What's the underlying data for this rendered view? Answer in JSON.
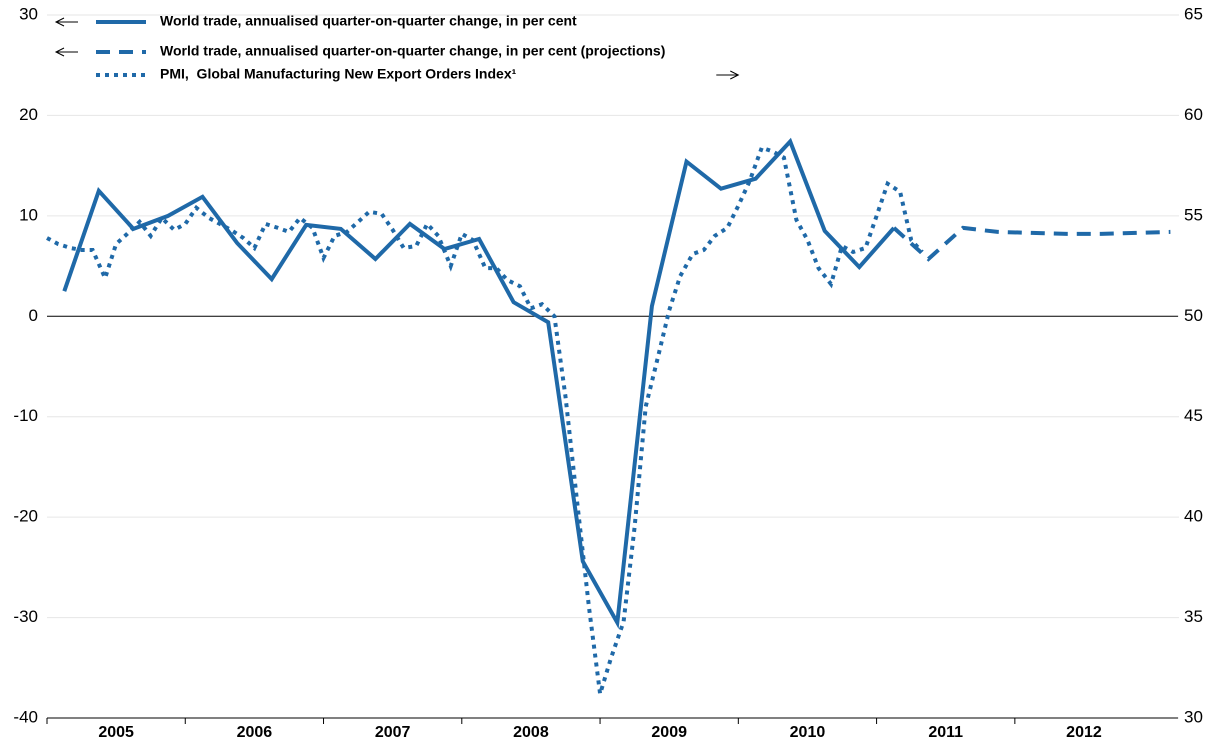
{
  "chart_data": {
    "type": "line",
    "series": [
      {
        "name": "World trade, annualised quarter-on-quarter change, in per cent",
        "color": "#1f69a8",
        "style": "solid",
        "axis": "y",
        "x": [
          2005.125,
          2005.375,
          2005.625,
          2005.875,
          2006.125,
          2006.375,
          2006.625,
          2006.875,
          2007.125,
          2007.375,
          2007.625,
          2007.875,
          2008.125,
          2008.375,
          2008.625,
          2008.875,
          2009.125,
          2009.375,
          2009.625,
          2009.875,
          2010.125,
          2010.375,
          2010.625,
          2010.875,
          2011.125,
          2011.375,
          2011.625,
          2011.875,
          2012.125,
          2012.375,
          2012.625,
          2012.875,
          2013.125
        ],
        "values": [
          2.5,
          12.5,
          8.7,
          10.0,
          11.9,
          7.3,
          3.7,
          9.1,
          8.7,
          5.7,
          9.2,
          6.7,
          7.7,
          1.4,
          -0.6,
          -24.4,
          -30.5,
          1.0,
          15.4,
          12.7,
          13.7,
          17.4,
          8.5,
          4.9,
          8.8,
          null,
          null,
          null,
          null,
          null,
          null,
          null,
          null
        ]
      },
      {
        "name": "World trade, annualised quarter-on-quarter change, in per cent (projections)",
        "color": "#1f69a8",
        "style": "dashed",
        "axis": "y",
        "x": [
          2005.125,
          2005.375,
          2005.625,
          2005.875,
          2006.125,
          2006.375,
          2006.625,
          2006.875,
          2007.125,
          2007.375,
          2007.625,
          2007.875,
          2008.125,
          2008.375,
          2008.625,
          2008.875,
          2009.125,
          2009.375,
          2009.625,
          2009.875,
          2010.125,
          2010.375,
          2010.625,
          2010.875,
          2011.125,
          2011.375,
          2011.625,
          2011.875,
          2012.125,
          2012.375,
          2012.625,
          2012.875,
          2013.125
        ],
        "values": [
          null,
          null,
          null,
          null,
          null,
          null,
          null,
          null,
          null,
          null,
          null,
          null,
          null,
          null,
          null,
          null,
          null,
          null,
          null,
          null,
          null,
          null,
          null,
          null,
          8.8,
          5.7,
          8.8,
          8.4,
          8.3,
          8.2,
          8.2,
          8.3,
          8.4
        ]
      },
      {
        "name": "PMI,  Global Manufacturing New Export Orders Index¹",
        "color": "#1f69a8",
        "style": "dotted",
        "axis": "y2",
        "x": [
          2005.0,
          2005.08,
          2005.17,
          2005.25,
          2005.33,
          2005.42,
          2005.5,
          2005.58,
          2005.67,
          2005.75,
          2005.83,
          2005.92,
          2006.0,
          2006.08,
          2006.17,
          2006.25,
          2006.33,
          2006.42,
          2006.5,
          2006.58,
          2006.67,
          2006.75,
          2006.83,
          2006.92,
          2007.0,
          2007.08,
          2007.17,
          2007.25,
          2007.33,
          2007.42,
          2007.5,
          2007.58,
          2007.67,
          2007.75,
          2007.83,
          2007.92,
          2008.0,
          2008.08,
          2008.17,
          2008.25,
          2008.33,
          2008.42,
          2008.5,
          2008.58,
          2008.67,
          2008.75,
          2008.83,
          2008.92,
          2009.0,
          2009.08,
          2009.17,
          2009.25,
          2009.33,
          2009.42,
          2009.5,
          2009.58,
          2009.67,
          2009.75,
          2009.83,
          2009.92,
          2010.0,
          2010.08,
          2010.17,
          2010.25,
          2010.33,
          2010.42,
          2010.5,
          2010.58,
          2010.67,
          2010.75,
          2010.83,
          2010.92,
          2011.0,
          2011.08,
          2011.17,
          2011.25,
          2011.33
        ],
        "values": [
          53.9,
          53.6,
          53.4,
          53.3,
          53.3,
          51.9,
          53.6,
          54.1,
          54.7,
          54.0,
          54.9,
          54.3,
          54.6,
          55.4,
          54.9,
          54.6,
          54.3,
          53.9,
          53.4,
          54.6,
          54.4,
          54.2,
          54.9,
          54.4,
          52.9,
          54.0,
          54.2,
          54.7,
          55.2,
          55.1,
          54.3,
          53.4,
          53.5,
          54.6,
          54.0,
          52.5,
          54.1,
          53.8,
          52.4,
          52.4,
          51.8,
          51.5,
          50.4,
          50.6,
          50.0,
          46.0,
          41.0,
          35.5,
          31.2,
          33.0,
          34.8,
          39.5,
          45.5,
          48.0,
          50.3,
          52.0,
          53.1,
          53.3,
          54.0,
          54.4,
          55.5,
          56.7,
          58.4,
          58.2,
          57.9,
          54.8,
          53.8,
          52.4,
          51.6,
          53.5,
          53.2,
          53.4,
          55.0,
          56.6,
          56.2,
          53.8,
          53.2
        ]
      }
    ],
    "xlim": [
      2005,
      2013.18
    ],
    "xticks": [
      2005,
      2006,
      2007,
      2008,
      2009,
      2010,
      2011,
      2012
    ],
    "ylim": [
      -40,
      30
    ],
    "yticks": [
      -40,
      -30,
      -20,
      -10,
      0,
      10,
      20,
      30
    ],
    "y2lim": [
      30,
      65
    ],
    "y2ticks": [
      30,
      35,
      40,
      45,
      50,
      55,
      60,
      65
    ],
    "grid": true
  }
}
